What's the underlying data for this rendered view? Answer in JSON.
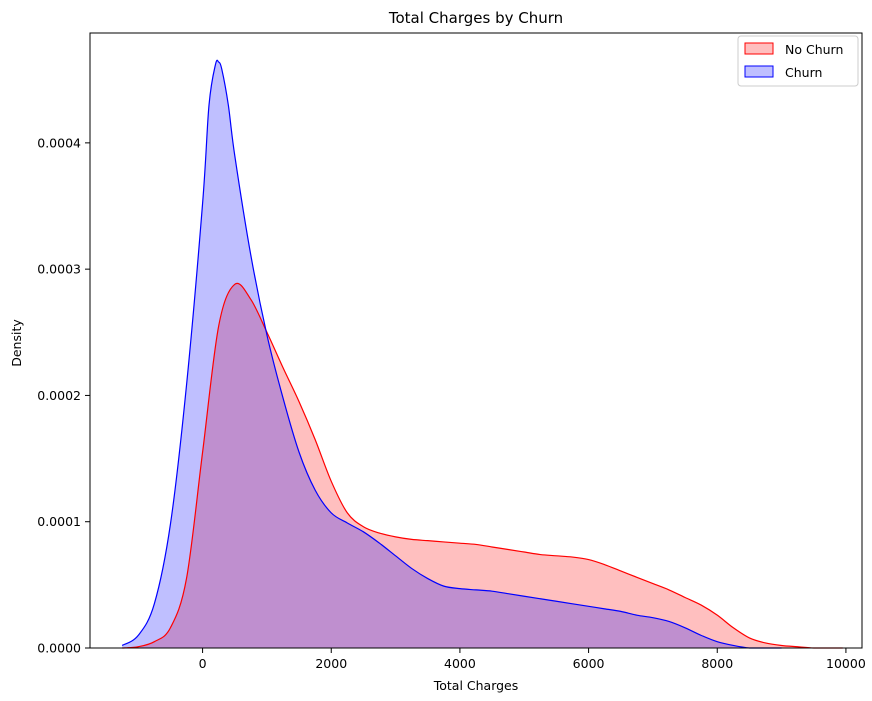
{
  "chart_data": {
    "type": "area",
    "title": "Total Charges by Churn",
    "xlabel": "Total Charges",
    "ylabel": "Density",
    "xlim": [
      -1750,
      10250
    ],
    "ylim": [
      0,
      0.000487
    ],
    "xticks": [
      0,
      2000,
      4000,
      6000,
      8000,
      10000
    ],
    "xtick_labels": [
      "0",
      "2000",
      "4000",
      "6000",
      "8000",
      "10000"
    ],
    "yticks": [
      0,
      0.0001,
      0.0002,
      0.0003,
      0.0004
    ],
    "ytick_labels": [
      "0.0000",
      "0.0001",
      "0.0002",
      "0.0003",
      "0.0004"
    ],
    "grid": false,
    "legend": {
      "position": "top-right"
    },
    "series": [
      {
        "name": "No Churn",
        "line_color": "#ff0000",
        "fill_color": "#ff0000",
        "fill_opacity": 0.25,
        "x": [
          -1250,
          -1000,
          -750,
          -500,
          -250,
          0,
          250,
          500,
          750,
          1000,
          1250,
          1500,
          1750,
          2000,
          2250,
          2500,
          2750,
          3000,
          3250,
          3500,
          3750,
          4000,
          4250,
          4500,
          4750,
          5000,
          5250,
          5500,
          5750,
          6000,
          6250,
          6500,
          6750,
          7000,
          7250,
          7500,
          7750,
          8000,
          8250,
          8500,
          8750,
          9000,
          9250,
          9500,
          9750,
          9950
        ],
        "y": [
          0.0,
          1e-06,
          5e-06,
          1.6e-05,
          5.5e-05,
          0.000155,
          0.000255,
          0.000288,
          0.000276,
          0.00025,
          0.000222,
          0.000195,
          0.000165,
          0.000132,
          0.000107,
          9.6e-05,
          9.1e-05,
          8.8e-05,
          8.6e-05,
          8.5e-05,
          8.4e-05,
          8.3e-05,
          8.2e-05,
          8e-05,
          7.8e-05,
          7.6e-05,
          7.4e-05,
          7.3e-05,
          7.2e-05,
          7e-05,
          6.6e-05,
          6.1e-05,
          5.6e-05,
          5.1e-05,
          4.6e-05,
          4e-05,
          3.4e-05,
          2.6e-05,
          1.6e-05,
          8e-06,
          4e-06,
          2e-06,
          1e-06,
          0.0,
          0.0,
          0.0
        ]
      },
      {
        "name": "Churn",
        "line_color": "#0000ff",
        "fill_color": "#0000ff",
        "fill_opacity": 0.25,
        "x": [
          -1250,
          -1000,
          -750,
          -500,
          -250,
          0,
          100,
          200,
          250,
          300,
          400,
          500,
          750,
          1000,
          1250,
          1500,
          1750,
          2000,
          2250,
          2500,
          2750,
          3000,
          3250,
          3500,
          3750,
          4000,
          4250,
          4500,
          4750,
          5000,
          5250,
          5500,
          5750,
          6000,
          6250,
          6500,
          6750,
          7000,
          7250,
          7500,
          7750,
          8000,
          8250,
          8500,
          8750,
          9000
        ],
        "y": [
          2e-06,
          1e-05,
          3.5e-05,
          9.8e-05,
          0.000208,
          0.000352,
          0.00043,
          0.000462,
          0.000464,
          0.000458,
          0.00043,
          0.00039,
          0.000311,
          0.000248,
          0.000198,
          0.000155,
          0.000125,
          0.000107,
          9.9e-05,
          9.2e-05,
          8.3e-05,
          7.3e-05,
          6.3e-05,
          5.5e-05,
          4.9e-05,
          4.7e-05,
          4.6e-05,
          4.5e-05,
          4.3e-05,
          4.1e-05,
          3.9e-05,
          3.7e-05,
          3.5e-05,
          3.3e-05,
          3.1e-05,
          2.9e-05,
          2.6e-05,
          2.4e-05,
          2.1e-05,
          1.6e-05,
          1e-05,
          5e-06,
          2e-06,
          0.0,
          0.0,
          0.0
        ]
      }
    ]
  }
}
